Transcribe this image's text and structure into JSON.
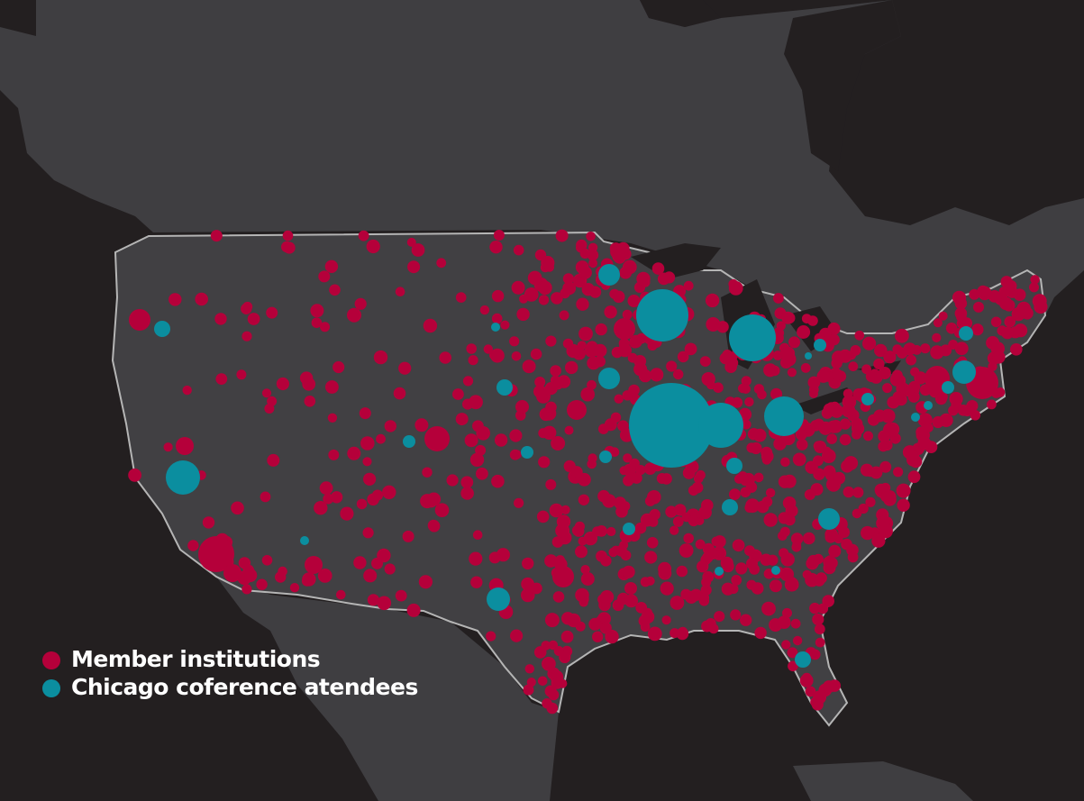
{
  "legend": {
    "items": [
      {
        "label": "Member institutions",
        "color": "#b5003a"
      },
      {
        "label": "Chicago coference atendees",
        "color": "#0b8e9f"
      }
    ]
  }
}
